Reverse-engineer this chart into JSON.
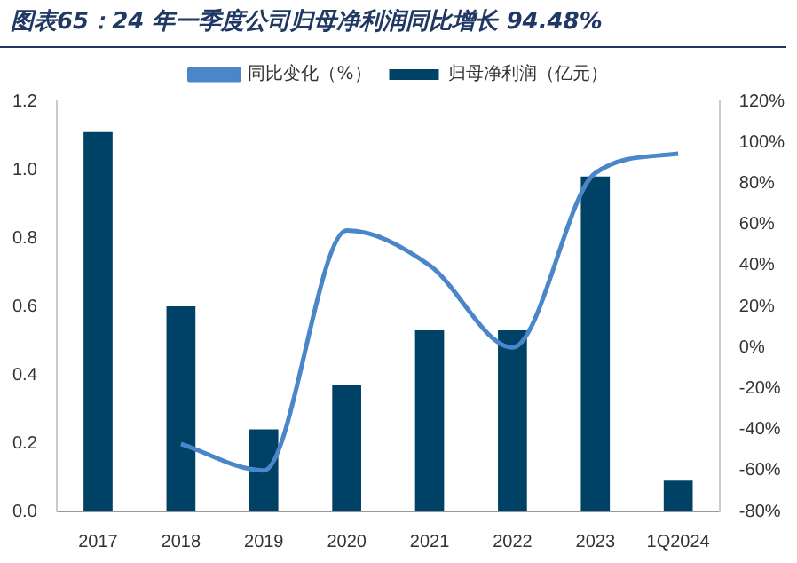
{
  "chart_data": {
    "type": "bar",
    "title": "图表65：24 年一季度公司归母净利润同比增长 94.48%",
    "categories": [
      "2017",
      "2018",
      "2019",
      "2020",
      "2021",
      "2022",
      "2023",
      "1Q2024"
    ],
    "series": [
      {
        "name": "归母净利润（亿元）",
        "color": "#004266",
        "values": [
          1.11,
          0.6,
          0.24,
          0.37,
          0.53,
          0.53,
          0.98,
          0.09
        ]
      },
      {
        "name": "同比变化（%）",
        "type": "line",
        "axis": "y2",
        "color": "#4a86c8",
        "values": [
          null,
          -47,
          -60,
          57,
          40,
          0,
          85,
          94.48
        ]
      }
    ],
    "ylim": [
      0,
      1.2
    ],
    "yticks": [
      {
        "value": 0,
        "label": "0.0"
      },
      {
        "value": 0.2,
        "label": "0.2"
      },
      {
        "value": 0.4,
        "label": "0.4"
      },
      {
        "value": 0.6,
        "label": "0.6"
      },
      {
        "value": 0.8,
        "label": "0.8"
      },
      {
        "value": 1,
        "label": "1.0"
      },
      {
        "value": 1.2,
        "label": "1.2"
      }
    ],
    "y2lim": [
      -80,
      120
    ],
    "y2ticks": [
      {
        "value": -80,
        "label": "-80%"
      },
      {
        "value": -60,
        "label": "-60%"
      },
      {
        "value": -40,
        "label": "-40%"
      },
      {
        "value": -20,
        "label": "-20%"
      },
      {
        "value": 0,
        "label": "0%"
      },
      {
        "value": 20,
        "label": "20%"
      },
      {
        "value": 40,
        "label": "40%"
      },
      {
        "value": 60,
        "label": "60%"
      },
      {
        "value": 80,
        "label": "80%"
      },
      {
        "value": 100,
        "label": "100%"
      },
      {
        "value": 120,
        "label": "120%"
      }
    ],
    "grid": false,
    "legend": "top",
    "marker": "none"
  }
}
